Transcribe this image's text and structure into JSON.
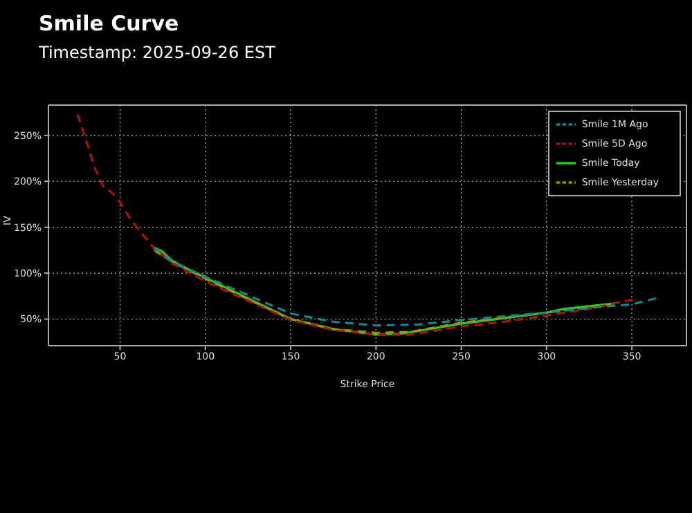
{
  "chart_data": {
    "type": "line",
    "title": "Smile Curve",
    "subtitle": "Timestamp: 2025-09-26 EST",
    "xlabel": "Strike Price",
    "ylabel": "IV",
    "xlim": [
      8,
      382
    ],
    "xticks": [
      50,
      100,
      150,
      200,
      250,
      300,
      350
    ],
    "ylim": [
      21,
      283
    ],
    "yticks": [
      {
        "value": 50,
        "label": "50%"
      },
      {
        "value": 100,
        "label": "100%"
      },
      {
        "value": 150,
        "label": "150%"
      },
      {
        "value": 200,
        "label": "200%"
      },
      {
        "value": 250,
        "label": "250%"
      }
    ],
    "grid": true,
    "legend": "top right",
    "series": [
      {
        "name": "Smile Today",
        "color": "#22cc22",
        "line_style": "solid",
        "x": [
          70,
          75,
          80,
          90,
          100,
          120,
          150,
          175,
          200,
          215,
          250,
          275,
          300,
          310,
          340
        ],
        "values": [
          128,
          123,
          114,
          104,
          95,
          77,
          50,
          39,
          33,
          34,
          45,
          51,
          57,
          61,
          67
        ]
      },
      {
        "name": "Smile Yesterday",
        "color": "#999900",
        "line_style": "dashed",
        "x": [
          70,
          80,
          100,
          120,
          150,
          175,
          200,
          220,
          250,
          300,
          340
        ],
        "values": [
          125,
          113,
          94,
          76,
          50,
          39,
          35,
          36,
          46,
          57,
          67
        ]
      },
      {
        "name": "Smile 5D Ago",
        "color": "#aa1111",
        "line_style": "dashed",
        "x": [
          25,
          30,
          35,
          40,
          45,
          50,
          55,
          60,
          65,
          70,
          80,
          90,
          100,
          120,
          150,
          175,
          200,
          220,
          250,
          275,
          300,
          325,
          350
        ],
        "values": [
          273,
          245,
          215,
          195,
          188,
          177,
          162,
          149,
          138,
          127,
          111,
          101,
          91,
          74,
          49,
          38,
          33,
          33,
          42,
          47,
          54,
          61,
          71
        ]
      },
      {
        "name": "Smile 1M Ago",
        "color": "#118888",
        "line_style": "dashed",
        "x": [
          70,
          80,
          100,
          120,
          150,
          175,
          200,
          225,
          250,
          300,
          330,
          350,
          365
        ],
        "values": [
          128,
          113,
          96,
          80,
          56,
          47,
          43,
          44,
          49,
          57,
          63,
          66,
          73
        ]
      }
    ]
  }
}
